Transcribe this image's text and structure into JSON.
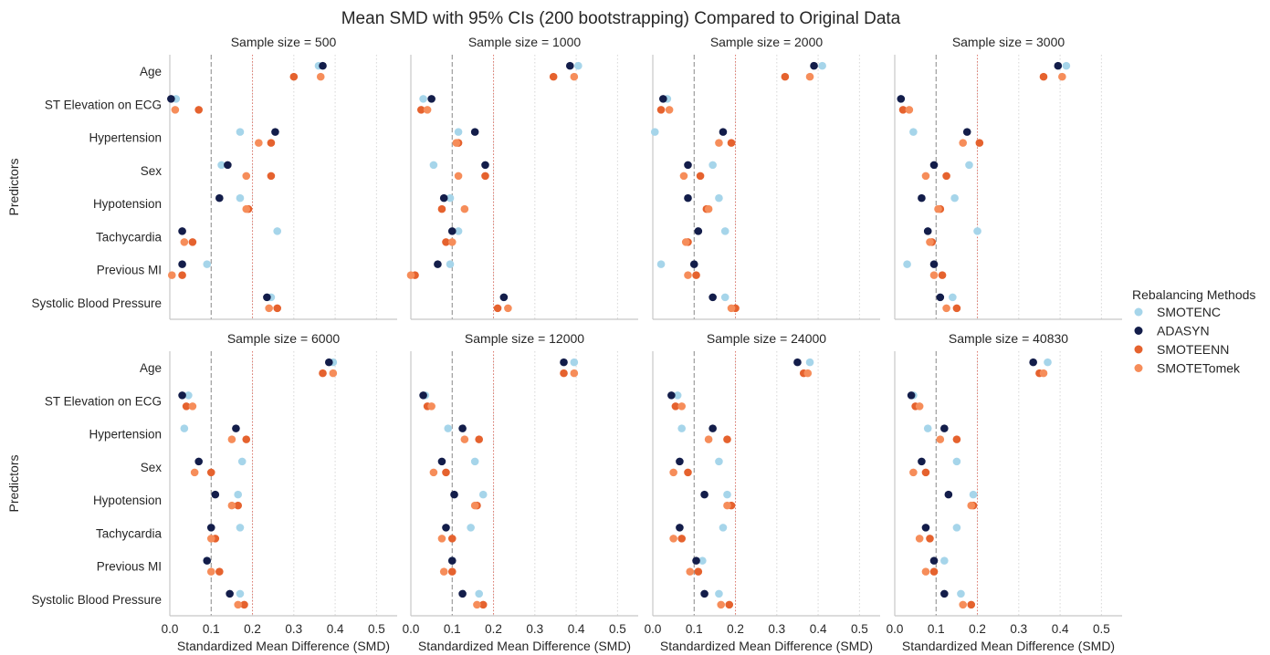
{
  "chart_data": {
    "type": "scatter",
    "title": "Mean SMD with 95% CIs (200 bootstrapping) Compared to Original Data",
    "xlabel": "Standardized Mean Difference (SMD)",
    "ylabel": "Predictors",
    "xlim": [
      0.0,
      0.55
    ],
    "xticks": [
      "0.0",
      "0.1",
      "0.2",
      "0.3",
      "0.4",
      "0.5"
    ],
    "reference_lines": [
      0.1,
      0.2
    ],
    "grid": "vertical dotted",
    "legend": {
      "title": "Rebalancing Methods",
      "placement": "right",
      "entries": [
        "SMOTENC",
        "ADASYN",
        "SMOTEENN",
        "SMOTETomek"
      ]
    },
    "colors": {
      "SMOTENC": "#a6d5ea",
      "ADASYN": "#131d4a",
      "SMOTEENN": "#e5622e",
      "SMOTETomek": "#f68d5a"
    },
    "predictors": [
      "Age",
      "ST Elevation on ECG",
      "Hypertension",
      "Sex",
      "Hypotension",
      "Tachycardia",
      "Previous MI",
      "Systolic Blood Pressure"
    ],
    "panels": [
      {
        "title": "Sample size = 500",
        "series": [
          {
            "name": "SMOTENC",
            "values": [
              0.36,
              0.015,
              0.17,
              0.125,
              0.17,
              0.26,
              0.09,
              0.245
            ]
          },
          {
            "name": "ADASYN",
            "values": [
              0.37,
              0.003,
              0.255,
              0.14,
              0.12,
              0.03,
              0.03,
              0.235
            ]
          },
          {
            "name": "SMOTEENN",
            "values": [
              0.3,
              0.07,
              0.245,
              0.245,
              0.19,
              0.055,
              0.03,
              0.26
            ]
          },
          {
            "name": "SMOTETomek",
            "values": [
              0.365,
              0.013,
              0.215,
              0.185,
              0.185,
              0.035,
              0.005,
              0.24
            ]
          }
        ]
      },
      {
        "title": "Sample size = 1000",
        "series": [
          {
            "name": "SMOTENC",
            "values": [
              0.405,
              0.03,
              0.115,
              0.055,
              0.095,
              0.115,
              0.095,
              0.225
            ]
          },
          {
            "name": "ADASYN",
            "values": [
              0.385,
              0.05,
              0.155,
              0.18,
              0.08,
              0.1,
              0.065,
              0.225
            ]
          },
          {
            "name": "SMOTEENN",
            "values": [
              0.345,
              0.025,
              0.115,
              0.18,
              0.075,
              0.085,
              0.01,
              0.21
            ]
          },
          {
            "name": "SMOTETomek",
            "values": [
              0.395,
              0.04,
              0.11,
              0.115,
              0.13,
              0.1,
              0.0,
              0.235
            ]
          }
        ]
      },
      {
        "title": "Sample size = 2000",
        "series": [
          {
            "name": "SMOTENC",
            "values": [
              0.41,
              0.035,
              0.005,
              0.145,
              0.16,
              0.175,
              0.02,
              0.175
            ]
          },
          {
            "name": "ADASYN",
            "values": [
              0.39,
              0.025,
              0.17,
              0.085,
              0.085,
              0.11,
              0.1,
              0.145
            ]
          },
          {
            "name": "SMOTEENN",
            "values": [
              0.32,
              0.02,
              0.19,
              0.115,
              0.13,
              0.085,
              0.105,
              0.2
            ]
          },
          {
            "name": "SMOTETomek",
            "values": [
              0.38,
              0.04,
              0.16,
              0.075,
              0.135,
              0.08,
              0.085,
              0.19
            ]
          }
        ]
      },
      {
        "title": "Sample size = 3000",
        "series": [
          {
            "name": "SMOTENC",
            "values": [
              0.415,
              0.015,
              0.045,
              0.18,
              0.145,
              0.2,
              0.03,
              0.14
            ]
          },
          {
            "name": "ADASYN",
            "values": [
              0.395,
              0.015,
              0.175,
              0.095,
              0.065,
              0.08,
              0.095,
              0.11
            ]
          },
          {
            "name": "SMOTEENN",
            "values": [
              0.36,
              0.02,
              0.205,
              0.125,
              0.11,
              0.09,
              0.115,
              0.15
            ]
          },
          {
            "name": "SMOTETomek",
            "values": [
              0.405,
              0.035,
              0.165,
              0.075,
              0.105,
              0.085,
              0.095,
              0.125
            ]
          }
        ]
      },
      {
        "title": "Sample size = 6000",
        "series": [
          {
            "name": "SMOTENC",
            "values": [
              0.395,
              0.045,
              0.035,
              0.175,
              0.165,
              0.17,
              0.09,
              0.17
            ]
          },
          {
            "name": "ADASYN",
            "values": [
              0.385,
              0.03,
              0.16,
              0.07,
              0.11,
              0.1,
              0.09,
              0.145
            ]
          },
          {
            "name": "SMOTEENN",
            "values": [
              0.37,
              0.04,
              0.185,
              0.1,
              0.165,
              0.11,
              0.12,
              0.18
            ]
          },
          {
            "name": "SMOTETomek",
            "values": [
              0.395,
              0.055,
              0.15,
              0.06,
              0.15,
              0.1,
              0.1,
              0.165
            ]
          }
        ]
      },
      {
        "title": "Sample size = 12000",
        "series": [
          {
            "name": "SMOTENC",
            "values": [
              0.395,
              0.035,
              0.09,
              0.155,
              0.175,
              0.145,
              0.1,
              0.165
            ]
          },
          {
            "name": "ADASYN",
            "values": [
              0.37,
              0.03,
              0.125,
              0.075,
              0.105,
              0.085,
              0.1,
              0.125
            ]
          },
          {
            "name": "SMOTEENN",
            "values": [
              0.37,
              0.04,
              0.165,
              0.085,
              0.16,
              0.1,
              0.1,
              0.175
            ]
          },
          {
            "name": "SMOTETomek",
            "values": [
              0.395,
              0.05,
              0.13,
              0.055,
              0.155,
              0.075,
              0.08,
              0.16
            ]
          }
        ]
      },
      {
        "title": "Sample size = 24000",
        "series": [
          {
            "name": "SMOTENC",
            "values": [
              0.38,
              0.06,
              0.07,
              0.16,
              0.18,
              0.17,
              0.12,
              0.16
            ]
          },
          {
            "name": "ADASYN",
            "values": [
              0.35,
              0.045,
              0.145,
              0.065,
              0.125,
              0.065,
              0.105,
              0.125
            ]
          },
          {
            "name": "SMOTEENN",
            "values": [
              0.365,
              0.055,
              0.18,
              0.085,
              0.19,
              0.07,
              0.11,
              0.185
            ]
          },
          {
            "name": "SMOTETomek",
            "values": [
              0.375,
              0.07,
              0.135,
              0.05,
              0.18,
              0.05,
              0.09,
              0.165
            ]
          }
        ]
      },
      {
        "title": "Sample size = 40830",
        "series": [
          {
            "name": "SMOTENC",
            "values": [
              0.37,
              0.045,
              0.08,
              0.15,
              0.19,
              0.15,
              0.12,
              0.16
            ]
          },
          {
            "name": "ADASYN",
            "values": [
              0.335,
              0.04,
              0.12,
              0.065,
              0.13,
              0.075,
              0.095,
              0.12
            ]
          },
          {
            "name": "SMOTEENN",
            "values": [
              0.35,
              0.05,
              0.15,
              0.075,
              0.19,
              0.085,
              0.095,
              0.185
            ]
          },
          {
            "name": "SMOTETomek",
            "values": [
              0.36,
              0.06,
              0.11,
              0.045,
              0.185,
              0.06,
              0.075,
              0.165
            ]
          }
        ]
      }
    ]
  }
}
